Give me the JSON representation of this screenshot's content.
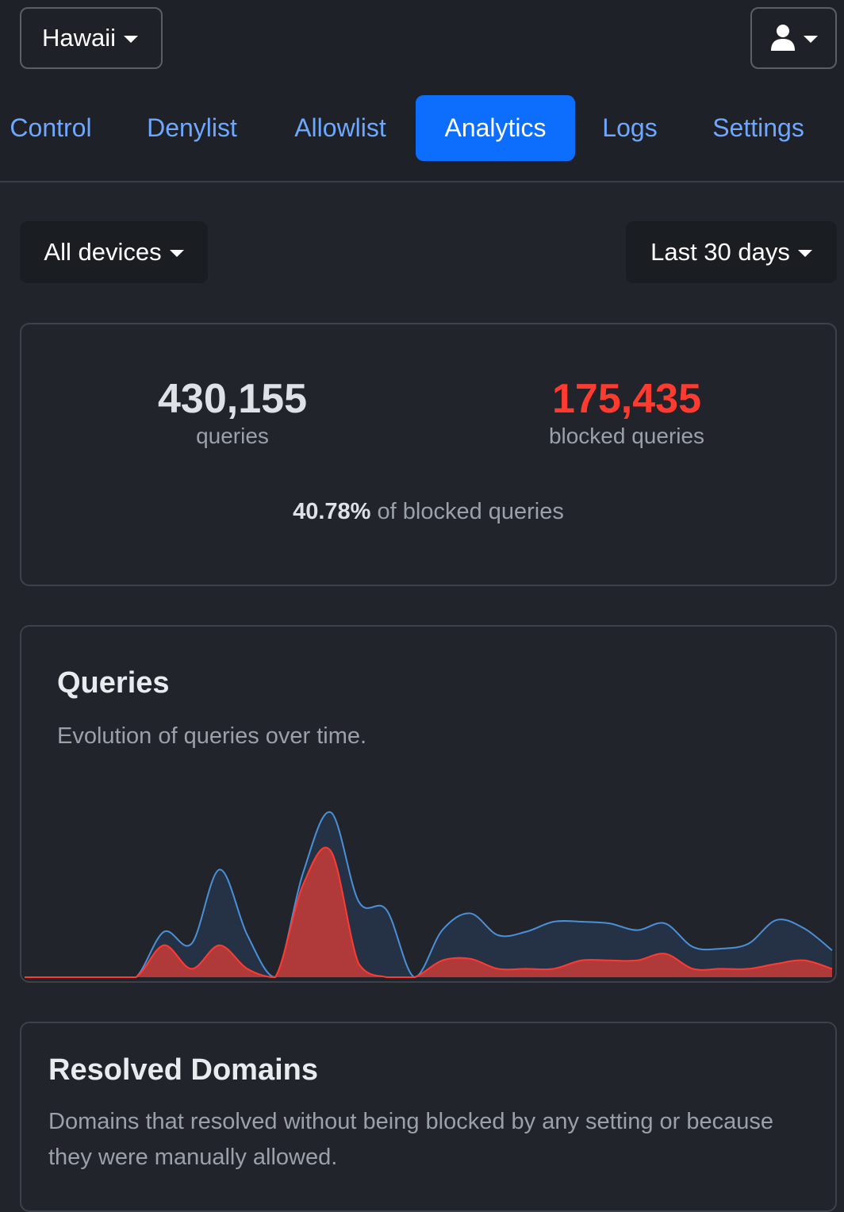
{
  "header": {
    "profile": "Hawaii",
    "account_icon": "user-icon"
  },
  "nav": {
    "tabs": [
      {
        "label": "Control",
        "active": false
      },
      {
        "label": "Denylist",
        "active": false
      },
      {
        "label": "Allowlist",
        "active": false
      },
      {
        "label": "Analytics",
        "active": true
      },
      {
        "label": "Logs",
        "active": false
      },
      {
        "label": "Settings",
        "active": false
      }
    ]
  },
  "filters": {
    "device": "All devices",
    "period": "Last 30 days"
  },
  "summary": {
    "queries_value": "430,155",
    "queries_label": "queries",
    "blocked_value": "175,435",
    "blocked_label": "blocked queries",
    "ratio_value": "40.78%",
    "ratio_label": " of blocked queries"
  },
  "queries_card": {
    "title": "Queries",
    "description": "Evolution of queries over time."
  },
  "resolved_card": {
    "title": "Resolved Domains",
    "description": "Domains that resolved without being blocked by any setting or because they were manually allowed."
  },
  "colors": {
    "accent": "#0d6efd",
    "link": "#6ea8fe",
    "blocked": "#ff3b30",
    "total_line": "#4a90d9",
    "total_fill": "#253246",
    "blocked_fill": "#b03a3a"
  },
  "chart_data": {
    "type": "area",
    "title": "",
    "xlabel": "",
    "ylabel": "",
    "x": [
      1,
      2,
      3,
      4,
      5,
      6,
      7,
      8,
      9,
      10,
      11,
      12,
      13,
      14,
      15,
      16,
      17,
      18,
      19,
      20,
      21,
      22,
      23,
      24,
      25,
      26,
      27,
      28,
      29,
      30
    ],
    "ylim": [
      0,
      100
    ],
    "series": [
      {
        "values": [
          0,
          0,
          0,
          0,
          0,
          27,
          20,
          64,
          25,
          0,
          62,
          98,
          45,
          40,
          0,
          28,
          38,
          25,
          27,
          33,
          33,
          32,
          28,
          32,
          18,
          17,
          20,
          34,
          29,
          16
        ]
      },
      {
        "values": [
          0,
          0,
          0,
          0,
          0,
          19,
          5,
          19,
          5,
          0,
          55,
          75,
          8,
          0,
          0,
          10,
          11,
          5,
          5,
          5,
          10,
          10,
          10,
          14,
          5,
          5,
          5,
          8,
          10,
          5
        ]
      }
    ]
  }
}
